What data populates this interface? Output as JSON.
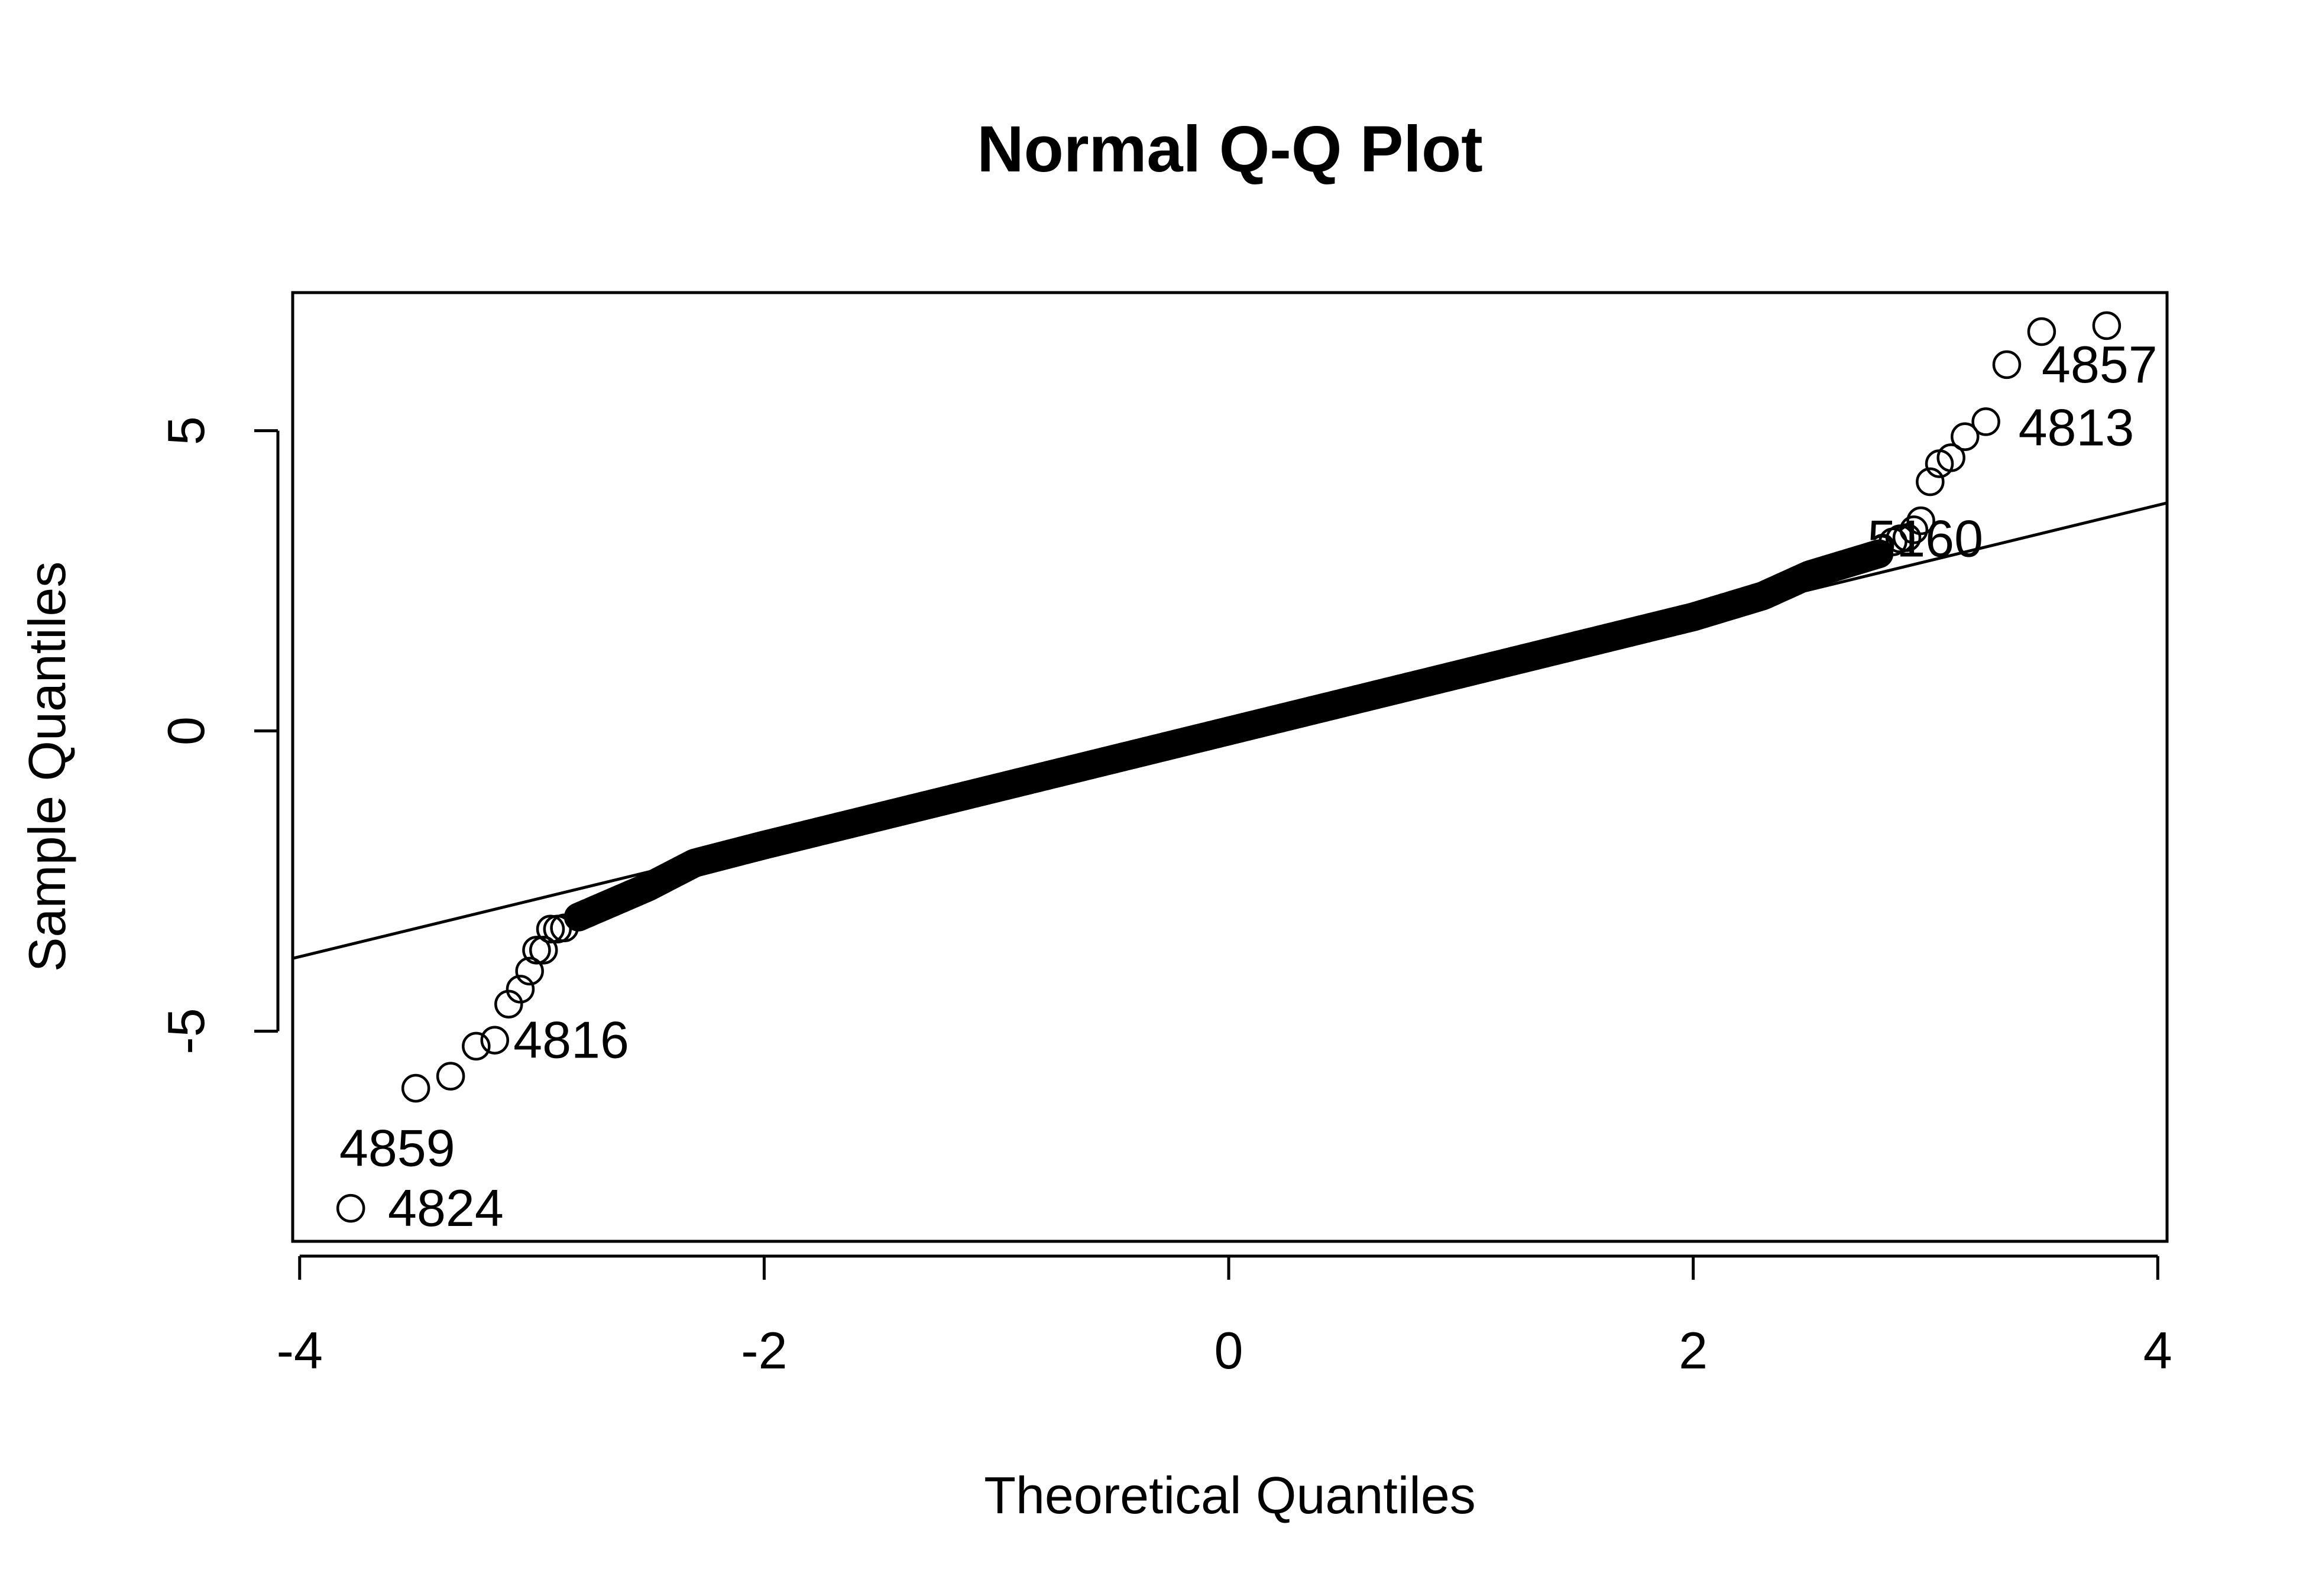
{
  "chart_data": {
    "type": "scatter",
    "title": "Normal Q-Q Plot",
    "xlabel": "Theoretical Quantiles",
    "ylabel": "Sample Quantiles",
    "xlim": [
      -4.03,
      4.04
    ],
    "ylim": [
      -8.5,
      7.3
    ],
    "x_ticks": [
      -4,
      -2,
      0,
      2,
      4
    ],
    "x_tick_labels": [
      "-4",
      "-2",
      "0",
      "2",
      "4"
    ],
    "y_ticks": [
      -5,
      0,
      5
    ],
    "y_tick_labels": [
      "-5",
      "0",
      "5"
    ],
    "grid": false,
    "legend": "none",
    "reference_line": {
      "intercept": 0.0,
      "slope": 0.94
    },
    "bulk": {
      "description_free_params": true,
      "x_range": [
        -2.8,
        2.8
      ],
      "knots_x": [
        -2.8,
        -2.5,
        -2.3,
        -2.0,
        2.0,
        2.3,
        2.5,
        2.8
      ],
      "knots_y": [
        -3.1,
        -2.6,
        -2.2,
        -1.9,
        1.9,
        2.25,
        2.6,
        2.95
      ]
    },
    "tail_points": [
      {
        "x": -3.78,
        "y": -7.95
      },
      {
        "x": -3.5,
        "y": -5.95
      },
      {
        "x": -3.35,
        "y": -5.75
      },
      {
        "x": -3.24,
        "y": -5.25
      },
      {
        "x": -3.16,
        "y": -5.15
      },
      {
        "x": -3.1,
        "y": -4.55
      },
      {
        "x": -3.05,
        "y": -4.3
      },
      {
        "x": -3.01,
        "y": -4.0
      },
      {
        "x": -2.98,
        "y": -3.65
      },
      {
        "x": -2.95,
        "y": -3.65
      },
      {
        "x": -2.92,
        "y": -3.3
      },
      {
        "x": -2.89,
        "y": -3.3
      },
      {
        "x": -2.86,
        "y": -3.28
      },
      {
        "x": 2.86,
        "y": 3.15
      },
      {
        "x": 2.89,
        "y": 3.2
      },
      {
        "x": 2.92,
        "y": 3.22
      },
      {
        "x": 2.95,
        "y": 3.35
      },
      {
        "x": 2.98,
        "y": 3.5
      },
      {
        "x": 3.02,
        "y": 4.15
      },
      {
        "x": 3.06,
        "y": 4.45
      },
      {
        "x": 3.11,
        "y": 4.55
      },
      {
        "x": 3.17,
        "y": 4.9
      },
      {
        "x": 3.26,
        "y": 5.15
      },
      {
        "x": 3.35,
        "y": 6.1
      },
      {
        "x": 3.5,
        "y": 6.65
      },
      {
        "x": 3.78,
        "y": 6.75
      }
    ],
    "annotations": [
      {
        "label": "4857",
        "x": 3.5,
        "y": 6.1,
        "anchor": "start"
      },
      {
        "label": "4813",
        "x": 3.4,
        "y": 5.05,
        "anchor": "start"
      },
      {
        "label": "5160",
        "x": 2.75,
        "y": 3.2,
        "anchor": "start"
      },
      {
        "label": "4816",
        "x": -3.08,
        "y": -5.15,
        "anchor": "start"
      },
      {
        "label": "4859",
        "x": -3.58,
        "y": -6.95,
        "anchor": "middle"
      },
      {
        "label": "4824",
        "x": -3.62,
        "y": -7.95,
        "anchor": "start"
      }
    ]
  }
}
